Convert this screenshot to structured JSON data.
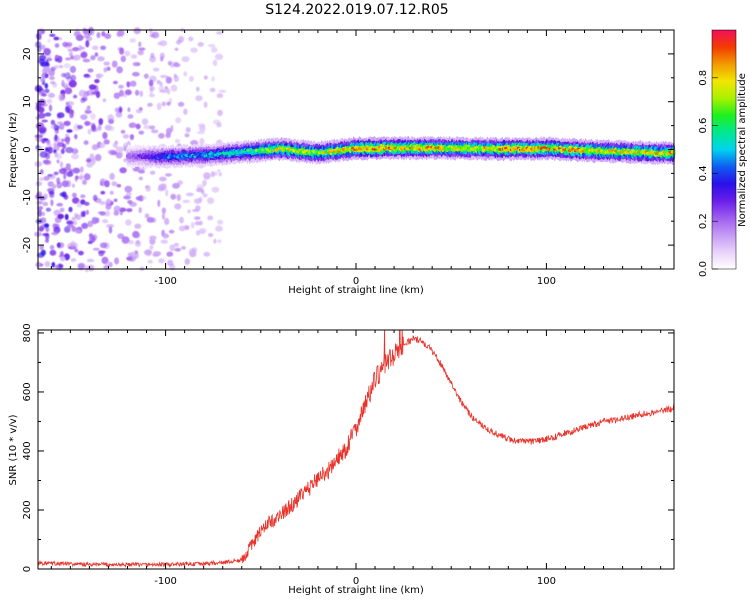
{
  "title": "S124.2022.019.07.12.R05",
  "colors": {
    "snr_line": "#e8332b",
    "colormap": [
      "#ffffff",
      "#e9d2fb",
      "#c59af5",
      "#9f5cf0",
      "#6a1ee8",
      "#2a10e8",
      "#0f5df2",
      "#00d4ee",
      "#00e890",
      "#1ef01e",
      "#a8f200",
      "#f2e600",
      "#f29a00",
      "#f23b00",
      "#f0105c"
    ]
  },
  "chart_data": [
    {
      "type": "heatmap",
      "name": "spectrogram",
      "xlabel": "Height of straight line (km)",
      "ylabel": "Frequency (Hz)",
      "xlim": [
        -167,
        167
      ],
      "ylim": [
        -25,
        25
      ],
      "xticks": [
        -100,
        0,
        100
      ],
      "yticks": [
        -20,
        -10,
        0,
        10,
        20
      ],
      "colorbar": {
        "label": "Normalized spectral amplitude",
        "ticks": [
          0.0,
          0.2,
          0.4,
          0.6,
          0.8
        ],
        "range": [
          0,
          1
        ]
      },
      "noise_region": {
        "x_from": -167,
        "x_to": -70,
        "amplitude": 0.1
      },
      "signal_ridge": {
        "x": [
          -120,
          -100,
          -80,
          -60,
          -40,
          -20,
          0,
          20,
          40,
          60,
          80,
          100,
          120,
          140,
          167
        ],
        "freq": [
          -1.5,
          -1.5,
          -1.2,
          -0.6,
          0.1,
          -0.7,
          0.2,
          0.3,
          0.3,
          0.2,
          0.1,
          0.2,
          -0.2,
          -0.5,
          -0.8
        ],
        "amplitude": [
          0.2,
          0.45,
          0.5,
          0.6,
          0.8,
          0.75,
          0.9,
          0.9,
          0.85,
          0.8,
          0.9,
          0.9,
          0.85,
          0.8,
          0.85
        ]
      }
    },
    {
      "type": "line",
      "name": "snr",
      "xlabel": "Height of straight line (km)",
      "ylabel": "SNR (10 * v/v)",
      "xlim": [
        -167,
        167
      ],
      "ylim": [
        0,
        810
      ],
      "xticks": [
        -100,
        0,
        100
      ],
      "yticks": [
        0,
        200,
        400,
        600,
        800
      ],
      "x": [
        -167,
        -140,
        -120,
        -100,
        -80,
        -70,
        -60,
        -55,
        -50,
        -45,
        -40,
        -35,
        -30,
        -25,
        -20,
        -15,
        -10,
        -5,
        0,
        5,
        10,
        15,
        20,
        25,
        30,
        35,
        40,
        45,
        50,
        55,
        60,
        70,
        80,
        90,
        100,
        110,
        120,
        130,
        140,
        150,
        160,
        167
      ],
      "y": [
        20,
        15,
        15,
        15,
        18,
        22,
        30,
        80,
        130,
        160,
        180,
        210,
        240,
        270,
        310,
        330,
        370,
        410,
        480,
        560,
        640,
        690,
        730,
        760,
        780,
        770,
        740,
        690,
        630,
        570,
        520,
        470,
        440,
        430,
        440,
        460,
        480,
        500,
        510,
        525,
        535,
        545
      ]
    }
  ]
}
